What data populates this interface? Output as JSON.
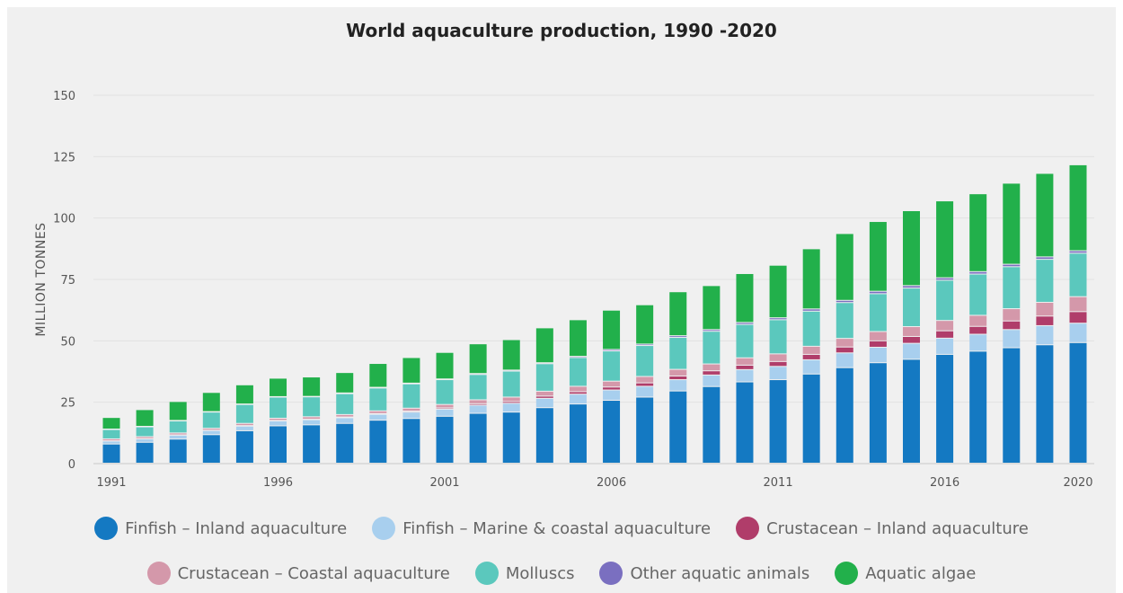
{
  "chart_data": {
    "type": "bar",
    "stacked": true,
    "title": "World aquaculture production, 1990 -2020",
    "ylabel": "MILLION TONNES",
    "xlabel": "",
    "ylim": [
      0,
      150
    ],
    "yticks": [
      0,
      25,
      50,
      75,
      100,
      125,
      150
    ],
    "xtick_labels": [
      "1991",
      "1996",
      "2001",
      "2006",
      "2011",
      "2016",
      "2020"
    ],
    "grid": true,
    "legend_position": "bottom",
    "categories": [
      "1991",
      "1992",
      "1993",
      "1994",
      "1995",
      "1996",
      "1997",
      "1998",
      "1999",
      "2000",
      "2001",
      "2002",
      "2003",
      "2004",
      "2005",
      "2006",
      "2007",
      "2008",
      "2009",
      "2010",
      "2011",
      "2012",
      "2013",
      "2014",
      "2015",
      "2016",
      "2017",
      "2018",
      "2019",
      "2020"
    ],
    "series": [
      {
        "name": "Finfish – Inland aquaculture",
        "color": "#1479c2",
        "values": [
          7.8,
          8.5,
          9.8,
          11.6,
          13.2,
          15.2,
          15.6,
          16.2,
          17.5,
          18.2,
          19.1,
          20.3,
          20.8,
          22.6,
          24.1,
          25.6,
          26.9,
          29.4,
          31.2,
          33.1,
          34.0,
          36.3,
          38.9,
          40.9,
          42.3,
          44.3,
          45.6,
          47.0,
          48.2,
          49.1
        ]
      },
      {
        "name": "Finfish – Marine & coastal aquaculture",
        "color": "#a8cfee",
        "values": [
          1.2,
          1.4,
          1.6,
          1.7,
          1.9,
          2.0,
          2.1,
          2.3,
          2.4,
          2.6,
          2.9,
          3.3,
          3.6,
          3.8,
          4.0,
          4.2,
          4.4,
          4.6,
          4.7,
          5.0,
          5.4,
          5.8,
          6.0,
          6.3,
          6.5,
          6.6,
          6.9,
          7.4,
          7.8,
          7.9
        ]
      },
      {
        "name": "Crustacean – Inland aquaculture",
        "color": "#b03d6a",
        "values": [
          0.1,
          0.1,
          0.1,
          0.1,
          0.2,
          0.2,
          0.2,
          0.3,
          0.3,
          0.4,
          0.5,
          0.6,
          0.7,
          0.9,
          1.0,
          1.2,
          1.4,
          1.5,
          1.7,
          1.8,
          2.0,
          2.2,
          2.4,
          2.6,
          2.8,
          3.0,
          3.2,
          3.5,
          3.9,
          4.7
        ]
      },
      {
        "name": "Crustacean – Coastal aquaculture",
        "color": "#d498aa",
        "values": [
          0.8,
          0.8,
          0.8,
          0.8,
          0.9,
          0.9,
          1.0,
          1.0,
          1.1,
          1.2,
          1.4,
          1.6,
          1.8,
          2.0,
          2.2,
          2.4,
          2.6,
          2.7,
          2.8,
          3.0,
          3.1,
          3.3,
          3.5,
          3.8,
          4.0,
          4.2,
          4.5,
          5.0,
          5.6,
          6.1
        ]
      },
      {
        "name": "Molluscs",
        "color": "#5bc8bd",
        "values": [
          3.8,
          4.0,
          4.9,
          6.6,
          7.7,
          8.6,
          8.1,
          8.5,
          9.3,
          9.9,
          10.1,
          10.3,
          10.6,
          11.2,
          11.7,
          12.3,
          12.6,
          13.0,
          13.3,
          13.6,
          13.9,
          14.3,
          14.6,
          15.4,
          15.7,
          16.4,
          16.8,
          17.1,
          17.5,
          17.7
        ]
      },
      {
        "name": "Other aquatic animals",
        "color": "#7a6fc0",
        "values": [
          0.2,
          0.2,
          0.2,
          0.2,
          0.2,
          0.2,
          0.2,
          0.3,
          0.3,
          0.3,
          0.3,
          0.4,
          0.4,
          0.4,
          0.5,
          0.6,
          0.6,
          0.7,
          0.7,
          0.8,
          0.8,
          0.9,
          0.9,
          1.0,
          1.0,
          1.0,
          1.0,
          1.0,
          1.0,
          1.0
        ]
      },
      {
        "name": "Aquatic algae",
        "color": "#22b04b",
        "values": [
          4.7,
          6.8,
          7.7,
          7.8,
          7.8,
          7.5,
          7.9,
          8.3,
          9.7,
          10.4,
          10.8,
          12.1,
          12.4,
          14.2,
          14.9,
          16.0,
          16.0,
          17.9,
          17.9,
          19.9,
          21.4,
          24.5,
          27.2,
          28.4,
          30.5,
          31.3,
          31.7,
          33.0,
          34.0,
          35.0
        ]
      }
    ]
  }
}
